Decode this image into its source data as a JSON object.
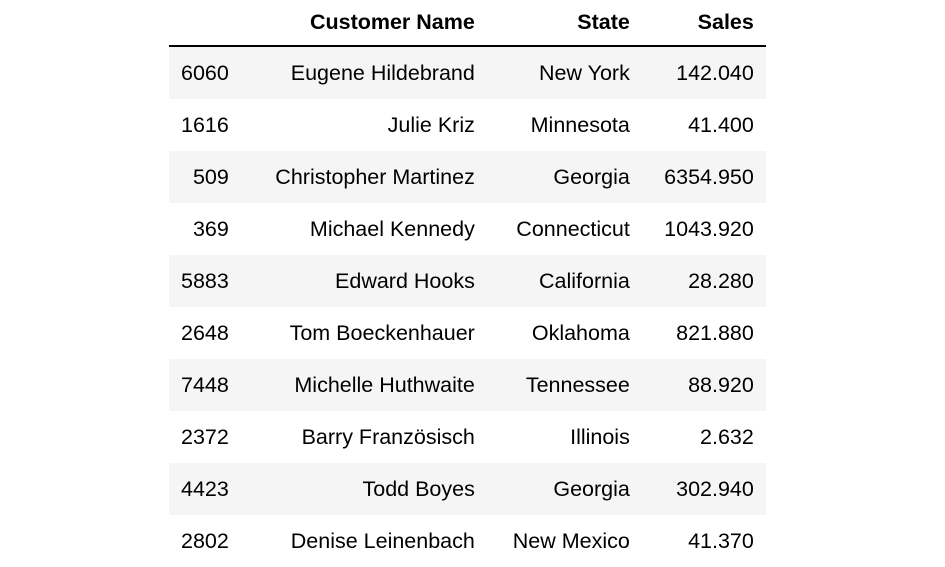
{
  "table": {
    "columns": [
      "",
      "Customer Name",
      "State",
      "Sales"
    ],
    "rows": [
      {
        "index": "6060",
        "customer_name": "Eugene Hildebrand",
        "state": "New York",
        "sales": "142.040"
      },
      {
        "index": "1616",
        "customer_name": "Julie Kriz",
        "state": "Minnesota",
        "sales": "41.400"
      },
      {
        "index": "509",
        "customer_name": "Christopher Martinez",
        "state": "Georgia",
        "sales": "6354.950"
      },
      {
        "index": "369",
        "customer_name": "Michael Kennedy",
        "state": "Connecticut",
        "sales": "1043.920"
      },
      {
        "index": "5883",
        "customer_name": "Edward Hooks",
        "state": "California",
        "sales": "28.280"
      },
      {
        "index": "2648",
        "customer_name": "Tom Boeckenhauer",
        "state": "Oklahoma",
        "sales": "821.880"
      },
      {
        "index": "7448",
        "customer_name": "Michelle Huthwaite",
        "state": "Tennessee",
        "sales": "88.920"
      },
      {
        "index": "2372",
        "customer_name": "Barry Französisch",
        "state": "Illinois",
        "sales": "2.632"
      },
      {
        "index": "4423",
        "customer_name": "Todd Boyes",
        "state": "Georgia",
        "sales": "302.940"
      },
      {
        "index": "2802",
        "customer_name": "Denise Leinenbach",
        "state": "New Mexico",
        "sales": "41.370"
      }
    ]
  },
  "colors": {
    "stripe": "#f5f5f5",
    "header_rule": "#000000",
    "text": "#000000"
  }
}
